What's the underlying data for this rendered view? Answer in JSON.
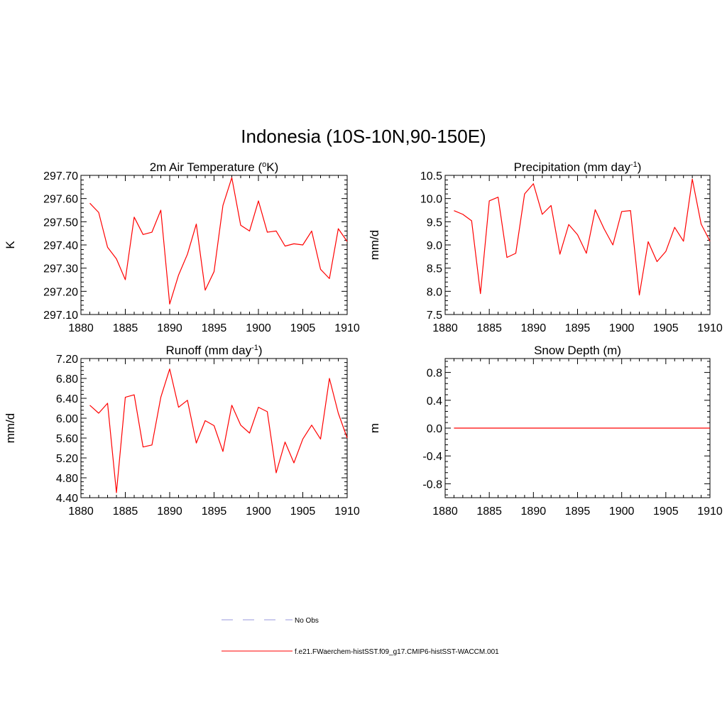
{
  "title": "Indonesia (10S-10N,90-150E)",
  "colors": {
    "model": "#ff0000",
    "obs": "#9999dd",
    "axis": "#000000"
  },
  "legend": {
    "obs_label": "No Obs",
    "model_label": "f.e21.FWaerchem-histSST.f09_g17.CMIP6-histSST-WACCM.001"
  },
  "chart_data": [
    {
      "type": "line",
      "title_pre": "2m Air Temperature (",
      "title_sup": "o",
      "title_post": "K)",
      "ylabel": "K",
      "xlim": [
        1880,
        1910
      ],
      "ylim": [
        297.1,
        297.7
      ],
      "yticks": [
        "297.10",
        "297.20",
        "297.30",
        "297.40",
        "297.50",
        "297.60",
        "297.70"
      ],
      "xticks": [
        "1880",
        "1885",
        "1890",
        "1895",
        "1900",
        "1905",
        "1910"
      ],
      "series": [
        {
          "x": [
            1881,
            1882,
            1883,
            1884,
            1885,
            1886,
            1887,
            1888,
            1889,
            1890,
            1891,
            1892,
            1893,
            1894,
            1895,
            1896,
            1897,
            1898,
            1899,
            1900,
            1901,
            1902,
            1903,
            1904,
            1905,
            1906,
            1907,
            1908,
            1909,
            1910
          ],
          "values": [
            297.58,
            297.54,
            297.39,
            297.34,
            297.25,
            297.52,
            297.445,
            297.455,
            297.55,
            297.145,
            297.27,
            297.36,
            297.49,
            297.205,
            297.285,
            297.57,
            297.69,
            297.485,
            297.46,
            297.59,
            297.455,
            297.46,
            297.395,
            297.405,
            297.4,
            297.46,
            297.295,
            297.255,
            297.47,
            297.415
          ]
        }
      ]
    },
    {
      "type": "line",
      "title_pre": "Precipitation (mm day",
      "title_sup": "-1",
      "title_post": ")",
      "ylabel": "mm/d",
      "xlim": [
        1880,
        1910
      ],
      "ylim": [
        7.5,
        10.5
      ],
      "yticks": [
        "7.5",
        "8.0",
        "8.5",
        "9.0",
        "9.5",
        "10.0",
        "10.5"
      ],
      "xticks": [
        "1880",
        "1885",
        "1890",
        "1895",
        "1900",
        "1905",
        "1910"
      ],
      "series": [
        {
          "x": [
            1881,
            1882,
            1883,
            1884,
            1885,
            1886,
            1887,
            1888,
            1889,
            1890,
            1891,
            1892,
            1893,
            1894,
            1895,
            1896,
            1897,
            1898,
            1899,
            1900,
            1901,
            1902,
            1903,
            1904,
            1905,
            1906,
            1907,
            1908,
            1909,
            1910
          ],
          "values": [
            9.74,
            9.66,
            9.52,
            7.95,
            9.95,
            10.03,
            8.73,
            8.82,
            10.1,
            10.32,
            9.66,
            9.85,
            8.8,
            9.44,
            9.22,
            8.82,
            9.76,
            9.35,
            9.0,
            9.72,
            9.74,
            7.92,
            9.07,
            8.64,
            8.86,
            9.38,
            9.08,
            10.42,
            9.45,
            9.08
          ]
        }
      ]
    },
    {
      "type": "line",
      "title_pre": "Runoff (mm day",
      "title_sup": "-1",
      "title_post": ")",
      "ylabel": "mm/d",
      "xlim": [
        1880,
        1910
      ],
      "ylim": [
        4.4,
        7.2
      ],
      "yticks": [
        "4.40",
        "4.80",
        "5.20",
        "5.60",
        "6.00",
        "6.40",
        "6.80",
        "7.20"
      ],
      "xticks": [
        "1880",
        "1885",
        "1890",
        "1895",
        "1900",
        "1905",
        "1910"
      ],
      "series": [
        {
          "x": [
            1881,
            1882,
            1883,
            1884,
            1885,
            1886,
            1887,
            1888,
            1889,
            1890,
            1891,
            1892,
            1893,
            1894,
            1895,
            1896,
            1897,
            1898,
            1899,
            1900,
            1901,
            1902,
            1903,
            1904,
            1905,
            1906,
            1907,
            1908,
            1909,
            1910
          ],
          "values": [
            6.26,
            6.1,
            6.3,
            4.5,
            6.42,
            6.47,
            5.42,
            5.46,
            6.42,
            6.99,
            6.22,
            6.36,
            5.5,
            5.95,
            5.85,
            5.33,
            6.26,
            5.86,
            5.7,
            6.22,
            6.13,
            4.9,
            5.52,
            5.1,
            5.58,
            5.86,
            5.58,
            6.8,
            6.1,
            5.6
          ]
        }
      ]
    },
    {
      "type": "line",
      "title_pre": "Snow Depth (m)",
      "title_sup": "",
      "title_post": "",
      "ylabel": "m",
      "xlim": [
        1880,
        1910
      ],
      "ylim": [
        -1.0,
        1.0
      ],
      "yticks": [
        "-0.8",
        "-0.4",
        "0.0",
        "0.4",
        "0.8"
      ],
      "ytick_values": [
        -0.8,
        -0.4,
        0.0,
        0.4,
        0.8
      ],
      "xticks": [
        "1880",
        "1885",
        "1890",
        "1895",
        "1900",
        "1905",
        "1910"
      ],
      "series": [
        {
          "x": [
            1881,
            1882,
            1883,
            1884,
            1885,
            1886,
            1887,
            1888,
            1889,
            1890,
            1891,
            1892,
            1893,
            1894,
            1895,
            1896,
            1897,
            1898,
            1899,
            1900,
            1901,
            1902,
            1903,
            1904,
            1905,
            1906,
            1907,
            1908,
            1909,
            1910
          ],
          "values": [
            0,
            0,
            0,
            0,
            0,
            0,
            0,
            0,
            0,
            0,
            0,
            0,
            0,
            0,
            0,
            0,
            0,
            0,
            0,
            0,
            0,
            0,
            0,
            0,
            0,
            0,
            0,
            0,
            0,
            0
          ]
        }
      ]
    }
  ]
}
